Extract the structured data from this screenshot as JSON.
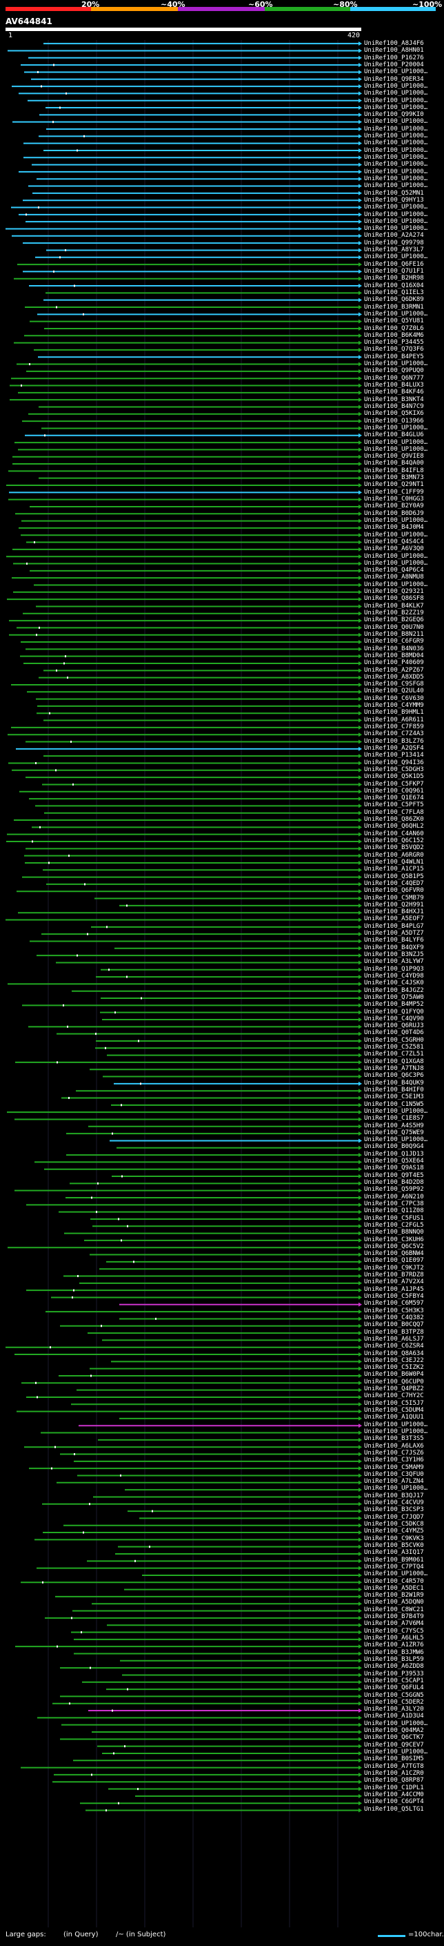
{
  "legend": {
    "labels": [
      "20%",
      "~40%",
      "~60%",
      "~80%",
      "~100%"
    ],
    "colors": [
      "#ff2222",
      "#ff9900",
      "#aa22cc",
      "#22aa22",
      "#33ccff"
    ]
  },
  "query": {
    "id": "AV644841",
    "start": "1",
    "end": "420"
  },
  "footer": {
    "large_gaps": "Large gaps:",
    "in_query": "(in Query)",
    "in_subject": "/~ (in Subject)",
    "scale": "=100char."
  },
  "hits": [
    "UniRef100_A8J4F6",
    "UniRef100_A8HN01",
    "UniRef100_P16276",
    "UniRef100_P20004",
    "UniRef100_UP1000…",
    "UniRef100_Q9ER34",
    "UniRef100_UP1000…",
    "UniRef100_UP1000…",
    "UniRef100_UP1000…",
    "UniRef100_UP1000…",
    "UniRef100_Q99KI0",
    "UniRef100_UP1000…",
    "UniRef100_UP1000…",
    "UniRef100_UP1000…",
    "UniRef100_UP1000…",
    "UniRef100_UP1000…",
    "UniRef100_UP1000…",
    "UniRef100_UP1000…",
    "UniRef100_UP1000…",
    "UniRef100_UP1000…",
    "UniRef100_UP1000…",
    "UniRef100_Q52MN1",
    "UniRef100_Q9HY13",
    "UniRef100_UP1000…",
    "UniRef100_UP1000…",
    "UniRef100_UP1000…",
    "UniRef100_UP1000…",
    "UniRef100_A2A274",
    "UniRef100_Q99798",
    "UniRef100_A8Y3L7",
    "UniRef100_UP1000…",
    "UniRef100_Q6FE16",
    "UniRef100_Q7U1F1",
    "UniRef100_B2HR98",
    "UniRef100_Q16X04",
    "UniRef100_Q1IEL3",
    "UniRef100_Q6DK89",
    "UniRef100_B3RMN1",
    "UniRef100_UP1000…",
    "UniRef100_Q5YU81",
    "UniRef100_Q7Z0L6",
    "UniRef100_B6K4M6",
    "UniRef100_P34455",
    "UniRef100_Q7Q3F6",
    "UniRef100_B4PEY5",
    "UniRef100_UP1000…",
    "UniRef100_Q9PUQ0",
    "UniRef100_Q6N777",
    "UniRef100_B4LUX3",
    "UniRef100_B4KF46",
    "UniRef100_B3NKT4",
    "UniRef100_B4N7C9",
    "UniRef100_Q5KIX6",
    "UniRef100_O13966",
    "UniRef100_UP1000…",
    "UniRef100_B4GLU6",
    "UniRef100_UP1000…",
    "UniRef100_UP1000…",
    "UniRef100_Q9VIE8",
    "UniRef100_B4QA00",
    "UniRef100_B4IFL8",
    "UniRef100_B3MN73",
    "UniRef100_Q29NT1",
    "UniRef100_C1FF99",
    "UniRef100_C0HGG3",
    "UniRef100_B2Y0A9",
    "UniRef100_B0D6J9",
    "UniRef100_UP1000…",
    "UniRef100_B4J0M4",
    "UniRef100_UP1000…",
    "UniRef100_Q4S4C4",
    "UniRef100_A6V3Q0",
    "UniRef100_UP1000…",
    "UniRef100_UP1000…",
    "UniRef100_Q4P6C4",
    "UniRef100_A8NMU8",
    "UniRef100_UP1000…",
    "UniRef100_Q29321",
    "UniRef100_Q86SF8",
    "UniRef100_B4KLK7",
    "UniRef100_B2ZZ19",
    "UniRef100_B2GEQ6",
    "UniRef100_Q0U7N0",
    "UniRef100_B8N211",
    "UniRef100_C6FGR9",
    "UniRef100_B4N036",
    "UniRef100_B8MD04",
    "UniRef100_P40609",
    "UniRef100_A2PZ67",
    "UniRef100_A8XDD5",
    "UniRef100_C9SFG8",
    "UniRef100_Q2UL40",
    "UniRef100_C6V630",
    "UniRef100_C4YMM9",
    "UniRef100_B9HML1",
    "UniRef100_A6R611",
    "UniRef100_C7F859",
    "UniRef100_C7Z4A3",
    "UniRef100_B3LZ76",
    "UniRef100_A2QSF4",
    "UniRef100_P13414",
    "UniRef100_Q94I36",
    "UniRef100_C5DGH3",
    "UniRef100_Q5K1D5",
    "UniRef100_C5FKP7",
    "UniRef100_C0Q961",
    "UniRef100_Q1E674",
    "UniRef100_C5PFT5",
    "UniRef100_C7FLA8",
    "UniRef100_Q86ZK0",
    "UniRef100_Q6QHL2",
    "UniRef100_C4AN60",
    "UniRef100_Q6C152",
    "UniRef100_B5VQD2",
    "UniRef100_A6RGR0",
    "UniRef100_Q4WLN1",
    "UniRef100_A1CP15",
    "UniRef100_Q5B1P5",
    "UniRef100_C4QED7",
    "UniRef100_Q6FVR0",
    "UniRef100_C5MB79",
    "UniRef100_Q2H991",
    "UniRef100_B4HXJ1",
    "UniRef100_A5EOF7",
    "UniRef100_B4PLG7",
    "UniRef100_A5DTZ7",
    "UniRef100_B4LYF6",
    "UniRef100_B4QXF9",
    "UniRef100_B3NZJ5",
    "UniRef100_A3LYW7",
    "UniRef100_Q1P9Q3",
    "UniRef100_C4YD98",
    "UniRef100_C4JSK0",
    "UniRef100_B4JGZ2",
    "UniRef100_Q75AW0",
    "UniRef100_B4MP52",
    "UniRef100_Q1FYQ0",
    "UniRef100_C4QV90",
    "UniRef100_Q6RUJ3",
    "UniRef100_Q0T4D6",
    "UniRef100_C5GRH0",
    "UniRef100_C5Z581",
    "UniRef100_C7ZL51",
    "UniRef100_Q1XGA8",
    "UniRef100_A7TNJ8",
    "UniRef100_Q6C3P6",
    "UniRef100_B4QUK9",
    "UniRef100_B4HIF0",
    "UniRef100_C5E1M3",
    "UniRef100_C1N5W5",
    "UniRef100_UP1000…",
    "UniRef100_C1E8S7",
    "UniRef100_A4S5H9",
    "UniRef100_Q75WE9",
    "UniRef100_UP1000…",
    "UniRef100_B0Q9G4",
    "UniRef100_Q1JD13",
    "UniRef100_Q5XE64",
    "UniRef100_Q9AS18",
    "UniRef100_Q9T4E5",
    "UniRef100_B4D2D8",
    "UniRef100_Q59P92",
    "UniRef100_A6N210",
    "UniRef100_C7PC38",
    "UniRef100_Q11Z08",
    "UniRef100_C5FUS1",
    "UniRef100_C2FGL5",
    "UniRef100_B8NNQ0",
    "UniRef100_C3KUH6",
    "UniRef100_Q6C5V2",
    "UniRef100_Q6BNW4",
    "UniRef100_Q1E097",
    "UniRef100_C9KJT2",
    "UniRef100_B7RDZ8",
    "UniRef100_A7V2X4",
    "UniRef100_A1JP45",
    "UniRef100_C5FBY4",
    "UniRef100_C6M597",
    "UniRef100_C5H3K3",
    "UniRef100_C4Q382",
    "UniRef100_B0CQQ7",
    "UniRef100_B3TPZ8",
    "UniRef100_A6LSJ7",
    "UniRef100_C6ZSR4",
    "UniRef100_Q8A634",
    "UniRef100_C3EJ22",
    "UniRef100_C5IZK2",
    "UniRef100_B6W0P4",
    "UniRef100_Q6CUP0",
    "UniRef100_Q4PBZ2",
    "UniRef100_C7HY2C",
    "UniRef100_C5I5J7",
    "UniRef100_C5DUM4",
    "UniRef100_A1QUU1",
    "UniRef100_UP1000…",
    "UniRef100_UP1000…",
    "UniRef100_B3T3S5",
    "UniRef100_A6LAX6",
    "UniRef100_C7JSZ6",
    "UniRef100_C3Y1H6",
    "UniRef100_C5MAM9",
    "UniRef100_C3QFU0",
    "UniRef100_A7LZN4",
    "UniRef100_UP1000…",
    "UniRef100_B3QJ17",
    "UniRef100_C4CVU9",
    "UniRef100_B3CSP3",
    "UniRef100_C7JQD7",
    "UniRef100_C5DKC8",
    "UniRef100_C4YMZ5",
    "UniRef100_C9KVK3",
    "UniRef100_B5CVK0",
    "UniRef100_A3IQ17",
    "UniRef100_B9M061",
    "UniRef100_C7PTQ4",
    "UniRef100_UP1000…",
    "UniRef100_C4R570",
    "UniRef100_A5DEC1",
    "UniRef100_B2W1R9",
    "UniRef100_A5DQN0",
    "UniRef100_C8WC21",
    "UniRef100_B7B4T9",
    "UniRef100_A7V6M4",
    "UniRef100_C7YSC5",
    "UniRef100_A6LHL5",
    "UniRef100_A1ZR76",
    "UniRef100_B3JMW6",
    "UniRef100_B3LP59",
    "UniRef100_A6ZDD8",
    "UniRef100_P39533",
    "UniRef100_C5CAP1",
    "UniRef100_Q6FUL4",
    "UniRef100_C5GGN5",
    "UniRef100_C5DER2",
    "UniRef100_A3LY20",
    "UniRef100_A1D3U4",
    "UniRef100_UP1000…",
    "UniRef100_Q04MA2",
    "UniRef100_Q6CTK7",
    "UniRef100_Q9CEV7",
    "UniRef100_UP1000…",
    "UniRef100_B0SIM5",
    "UniRef100_A7TGT8",
    "UniRef100_A1CZR0",
    "UniRef100_Q8RP87",
    "UniRef100_C1DPL1",
    "UniRef100_A4CCM0",
    "UniRef100_C6GPT4",
    "UniRef100_Q5LTG1"
  ]
}
